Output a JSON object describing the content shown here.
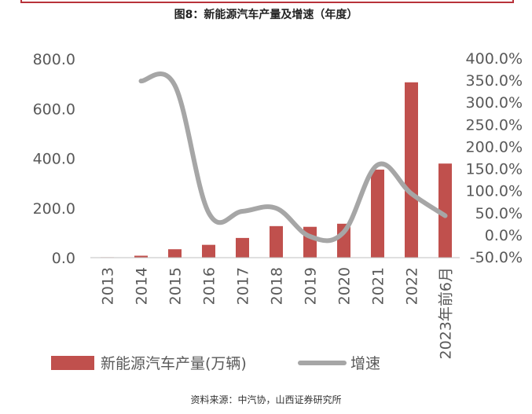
{
  "figure": {
    "title": "图8：新能源汽车产量及增速（年度）",
    "source": "资料来源：中汽协，山西证券研究所"
  },
  "chart_data": {
    "type": "bar",
    "categories": [
      "2013",
      "2014",
      "2015",
      "2016",
      "2017",
      "2018",
      "2019",
      "2020",
      "2021",
      "2022",
      "2023年前6月"
    ],
    "series": [
      {
        "name": "新能源汽车产量(万辆)",
        "type": "bar",
        "axis": "left",
        "color": "#c0504d",
        "values": [
          1.8,
          7.9,
          34.0,
          51.7,
          79.4,
          127.0,
          124.2,
          136.6,
          354.5,
          705.8,
          378.8
        ]
      },
      {
        "name": "增速",
        "type": "line",
        "axis": "right",
        "color": "#a6a6a6",
        "values": [
          null,
          350,
          340,
          52,
          55,
          62,
          -2,
          8,
          160,
          95,
          45
        ]
      }
    ],
    "left_axis": {
      "min": 0,
      "max": 800,
      "ticks": [
        "0.0",
        "200.0",
        "400.0",
        "600.0",
        "800.0"
      ]
    },
    "right_axis": {
      "min": -50,
      "max": 400,
      "ticks": [
        "-50.0%",
        "0.0%",
        "50.0%",
        "100.0%",
        "150.0%",
        "200.0%",
        "250.0%",
        "300.0%",
        "350.0%",
        "400.0%"
      ]
    },
    "grid": false,
    "legend_position": "bottom"
  }
}
